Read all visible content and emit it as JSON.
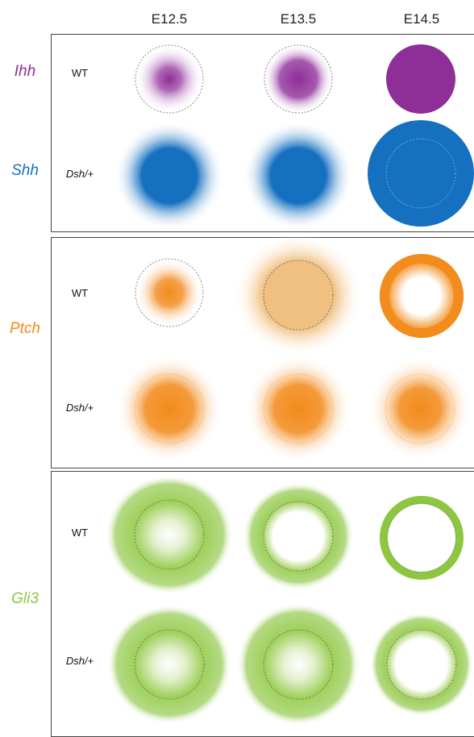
{
  "stages": [
    "E12.5",
    "E13.5",
    "E14.5"
  ],
  "genes": [
    {
      "name": "Ihh",
      "color": "#8e2e97"
    },
    {
      "name": "Shh",
      "color": "#1570c0"
    },
    {
      "name": "Ptch",
      "color": "#f28c1c"
    },
    {
      "name": "Gli3",
      "color": "#8dc63f"
    }
  ],
  "genotypes": {
    "wt": "WT",
    "dsh": "Dsh/+"
  },
  "legend_colors": {
    "ptch_core_e13": "#f0c080"
  }
}
